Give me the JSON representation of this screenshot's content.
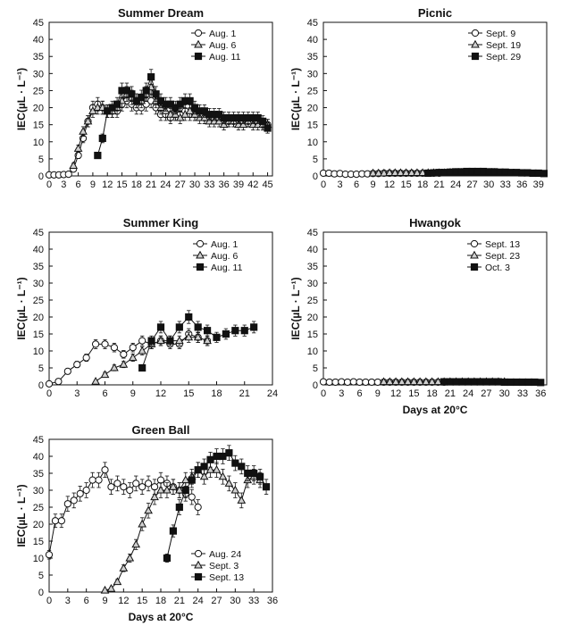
{
  "chart_data": [
    {
      "id": "summer-dream",
      "type": "line",
      "title": "Summer Dream",
      "ylabel": "IEC(µL · L⁻¹)",
      "xlabel": "",
      "xlim": [
        0,
        46
      ],
      "ylim": [
        0,
        45
      ],
      "xticks": [
        0,
        3,
        6,
        9,
        12,
        15,
        18,
        21,
        24,
        27,
        30,
        33,
        36,
        39,
        42,
        45
      ],
      "yticks": [
        0,
        5,
        10,
        15,
        20,
        25,
        30,
        35,
        40,
        45
      ],
      "series": [
        {
          "name": "Aug. 1",
          "marker": "circle",
          "x": [
            0,
            1,
            2,
            3,
            4,
            5,
            6,
            7,
            8,
            9,
            10,
            11,
            12,
            13,
            14,
            15,
            16,
            17,
            18,
            19,
            20,
            21,
            22,
            23,
            24,
            25,
            26,
            27,
            28,
            29,
            30,
            31,
            32,
            33,
            34,
            35,
            36,
            37,
            38,
            39,
            40,
            41,
            42,
            43,
            44,
            45
          ],
          "y": [
            0.3,
            0.3,
            0.3,
            0.4,
            0.5,
            2,
            6,
            11,
            16,
            20,
            21,
            20,
            19,
            19,
            19,
            21,
            22,
            21,
            20,
            20,
            21,
            22,
            20,
            18,
            18,
            17,
            18,
            18,
            19,
            18,
            18,
            18,
            17,
            17,
            17,
            17,
            16,
            16,
            16,
            16,
            16,
            16,
            16,
            16,
            15,
            15
          ]
        },
        {
          "name": "Aug. 6",
          "marker": "triangle",
          "x": [
            5,
            6,
            7,
            8,
            9,
            10,
            11,
            12,
            13,
            14,
            15,
            16,
            17,
            18,
            19,
            20,
            21,
            22,
            23,
            24,
            25,
            26,
            27,
            28,
            29,
            30,
            31,
            32,
            33,
            34,
            35,
            36,
            37,
            38,
            39,
            40,
            41,
            42,
            43,
            44,
            45
          ],
          "y": [
            3,
            8,
            13,
            16,
            19,
            20,
            20,
            19,
            19,
            20,
            22,
            24,
            23,
            22,
            22,
            24,
            26,
            22,
            20,
            19,
            18,
            18,
            17,
            18,
            19,
            18,
            17,
            17,
            16,
            16,
            16,
            15,
            16,
            16,
            15,
            15,
            16,
            15,
            15,
            15,
            15
          ]
        },
        {
          "name": "Aug. 11",
          "marker": "square",
          "x": [
            10,
            11,
            12,
            13,
            14,
            15,
            16,
            17,
            18,
            19,
            20,
            21,
            22,
            23,
            24,
            25,
            26,
            27,
            28,
            29,
            30,
            31,
            32,
            33,
            34,
            35,
            36,
            37,
            38,
            39,
            40,
            41,
            42,
            43,
            44,
            45
          ],
          "y": [
            6,
            11,
            19,
            20,
            21,
            25,
            25,
            24,
            22,
            23,
            25,
            29,
            24,
            22,
            21,
            21,
            20,
            21,
            22,
            22,
            20,
            19,
            19,
            18,
            18,
            18,
            17,
            17,
            17,
            17,
            17,
            17,
            17,
            17,
            16,
            14
          ]
        }
      ]
    },
    {
      "id": "picnic",
      "type": "line",
      "title": "Picnic",
      "ylabel": "IEC(µL · L⁻¹)",
      "xlabel": "",
      "xlim": [
        0,
        40.5
      ],
      "ylim": [
        0,
        45
      ],
      "xticks": [
        0,
        3,
        6,
        9,
        12,
        15,
        18,
        21,
        24,
        27,
        30,
        33,
        36,
        39
      ],
      "yticks": [
        0,
        5,
        10,
        15,
        20,
        25,
        30,
        35,
        40,
        45
      ],
      "series": [
        {
          "name": "Sept. 9",
          "marker": "circle",
          "x": [
            0,
            1,
            2,
            3,
            4,
            5,
            6,
            7,
            8,
            9,
            10,
            11,
            12,
            13,
            14,
            15,
            16,
            17,
            18,
            19,
            20,
            21
          ],
          "y": [
            0.8,
            0.8,
            0.6,
            0.7,
            0.5,
            0.5,
            0.5,
            0.6,
            0.6,
            0.7,
            0.7,
            0.8,
            0.8,
            0.8,
            0.8,
            0.8,
            0.8,
            0.8,
            0.8,
            0.8,
            0.8,
            0.8
          ]
        },
        {
          "name": "Sept. 19",
          "marker": "triangle",
          "x": [
            9,
            10,
            11,
            12,
            13,
            14,
            15,
            16,
            17,
            18,
            19,
            20,
            21,
            22,
            23,
            24,
            25,
            26,
            27,
            28,
            29,
            30,
            31
          ],
          "y": [
            0.8,
            0.8,
            0.8,
            0.9,
            0.9,
            0.9,
            0.9,
            0.9,
            0.9,
            0.9,
            0.9,
            0.9,
            0.9,
            0.9,
            1,
            1,
            1,
            1,
            1,
            1,
            1,
            1,
            1
          ]
        },
        {
          "name": "Sept. 29",
          "marker": "square",
          "x": [
            19,
            20,
            21,
            22,
            23,
            24,
            25,
            26,
            27,
            28,
            29,
            30,
            31,
            32,
            33,
            34,
            35,
            36,
            37,
            38,
            39,
            40
          ],
          "y": [
            0.8,
            0.9,
            1,
            1,
            1.1,
            1.2,
            1.2,
            1.3,
            1.3,
            1.3,
            1.3,
            1.2,
            1.2,
            1.1,
            1.1,
            1,
            1,
            0.9,
            0.9,
            0.8,
            0.8,
            0.7
          ]
        }
      ]
    },
    {
      "id": "summer-king",
      "type": "line",
      "title": "Summer King",
      "ylabel": "IEC(µL · L⁻¹)",
      "xlabel": "",
      "xlim": [
        0,
        24
      ],
      "ylim": [
        0,
        45
      ],
      "xticks": [
        0,
        3,
        6,
        9,
        12,
        15,
        18,
        21,
        24
      ],
      "yticks": [
        0,
        5,
        10,
        15,
        20,
        25,
        30,
        35,
        40,
        45
      ],
      "series": [
        {
          "name": "Aug. 1",
          "marker": "circle",
          "x": [
            0,
            1,
            2,
            3,
            4,
            5,
            6,
            7,
            8,
            9,
            10,
            11,
            12,
            13,
            14,
            15,
            16,
            17
          ],
          "y": [
            0.3,
            1,
            4,
            6,
            8,
            12,
            12,
            11,
            9,
            11,
            13,
            12,
            13,
            12,
            12,
            15,
            14,
            13
          ]
        },
        {
          "name": "Aug. 6",
          "marker": "triangle",
          "x": [
            5,
            6,
            7,
            8,
            9,
            10,
            11,
            12,
            13,
            14,
            15,
            16,
            17
          ],
          "y": [
            1,
            3,
            5,
            6,
            8,
            10,
            12,
            13,
            13,
            13,
            14,
            14,
            13
          ]
        },
        {
          "name": "Aug. 11",
          "marker": "square",
          "x": [
            10,
            11,
            12,
            13,
            14,
            15,
            16,
            17,
            18,
            19,
            20,
            21,
            22
          ],
          "y": [
            5,
            13,
            17,
            13,
            17,
            20,
            17,
            16,
            14,
            15,
            16,
            16,
            17
          ]
        }
      ]
    },
    {
      "id": "hwangok",
      "type": "line",
      "title": "Hwangok",
      "ylabel": "IEC(µL · L⁻¹)",
      "xlabel": "Days at 20°C",
      "xlim": [
        0,
        37
      ],
      "ylim": [
        0,
        45
      ],
      "xticks": [
        0,
        3,
        6,
        9,
        12,
        15,
        18,
        21,
        24,
        27,
        30,
        33,
        36
      ],
      "yticks": [
        0,
        5,
        10,
        15,
        20,
        25,
        30,
        35,
        40,
        45
      ],
      "series": [
        {
          "name": "Sept. 13",
          "marker": "circle",
          "x": [
            0,
            1,
            2,
            3,
            4,
            5,
            6,
            7,
            8,
            9,
            10,
            11,
            12,
            13,
            14,
            15,
            16,
            17,
            18,
            19,
            20
          ],
          "y": [
            0.9,
            0.8,
            0.8,
            0.9,
            0.8,
            0.9,
            0.8,
            0.8,
            0.8,
            0.8,
            0.8,
            0.8,
            0.8,
            0.8,
            0.8,
            0.8,
            0.8,
            0.8,
            0.8,
            0.8,
            0.8
          ]
        },
        {
          "name": "Sept. 23",
          "marker": "triangle",
          "x": [
            10,
            11,
            12,
            13,
            14,
            15,
            16,
            17,
            18,
            19,
            20,
            21,
            22,
            23,
            24,
            25,
            26,
            27,
            28,
            29,
            30
          ],
          "y": [
            0.9,
            0.9,
            0.9,
            0.9,
            0.9,
            0.9,
            0.9,
            0.9,
            0.9,
            0.9,
            0.9,
            0.9,
            0.9,
            0.9,
            0.9,
            0.9,
            0.9,
            0.9,
            0.9,
            0.9,
            0.9
          ]
        },
        {
          "name": "Oct. 3",
          "marker": "square",
          "x": [
            20,
            21,
            22,
            23,
            24,
            25,
            26,
            27,
            28,
            29,
            30,
            31,
            32,
            33,
            34,
            35,
            36
          ],
          "y": [
            0.9,
            0.9,
            0.9,
            0.9,
            0.9,
            0.9,
            0.9,
            0.9,
            0.9,
            0.9,
            0.8,
            0.8,
            0.8,
            0.8,
            0.8,
            0.8,
            0.7
          ]
        }
      ]
    },
    {
      "id": "green-ball",
      "type": "line",
      "title": "Green Ball",
      "ylabel": "IEC(µL · L⁻¹)",
      "xlabel": "Days at 20°C",
      "xlim": [
        0,
        36
      ],
      "ylim": [
        0,
        45
      ],
      "xticks": [
        0,
        3,
        6,
        9,
        12,
        15,
        18,
        21,
        24,
        27,
        30,
        33,
        36
      ],
      "yticks": [
        0,
        5,
        10,
        15,
        20,
        25,
        30,
        35,
        40,
        45
      ],
      "series": [
        {
          "name": "Aug. 24",
          "marker": "circle",
          "x": [
            0,
            1,
            2,
            3,
            4,
            5,
            6,
            7,
            8,
            9,
            10,
            11,
            12,
            13,
            14,
            15,
            16,
            17,
            18,
            19,
            20,
            21,
            22,
            23,
            24
          ],
          "y": [
            11,
            21,
            21,
            26,
            27,
            29,
            30,
            33,
            33,
            36,
            31,
            32,
            31,
            30,
            32,
            31,
            32,
            31,
            33,
            32,
            31,
            30,
            29,
            28,
            25
          ]
        },
        {
          "name": "Sept. 3",
          "marker": "triangle",
          "x": [
            9,
            10,
            11,
            12,
            13,
            14,
            15,
            16,
            17,
            18,
            19,
            20,
            21,
            22,
            23,
            24,
            25,
            26,
            27,
            28,
            29,
            30,
            31,
            32,
            33,
            34
          ],
          "y": [
            0.5,
            1,
            3,
            7,
            10,
            14,
            20,
            24,
            28,
            30,
            30,
            31,
            30,
            33,
            34,
            36,
            34,
            36,
            36,
            34,
            32,
            30,
            27,
            33,
            34,
            33
          ]
        },
        {
          "name": "Sept. 13",
          "marker": "square",
          "x": [
            19,
            20,
            21,
            22,
            23,
            24,
            25,
            26,
            27,
            28,
            29,
            30,
            31,
            32,
            33,
            34,
            35
          ],
          "y": [
            10,
            18,
            25,
            30,
            33,
            36,
            37,
            39,
            40,
            40,
            41,
            38,
            37,
            35,
            35,
            34,
            31
          ]
        }
      ]
    }
  ]
}
